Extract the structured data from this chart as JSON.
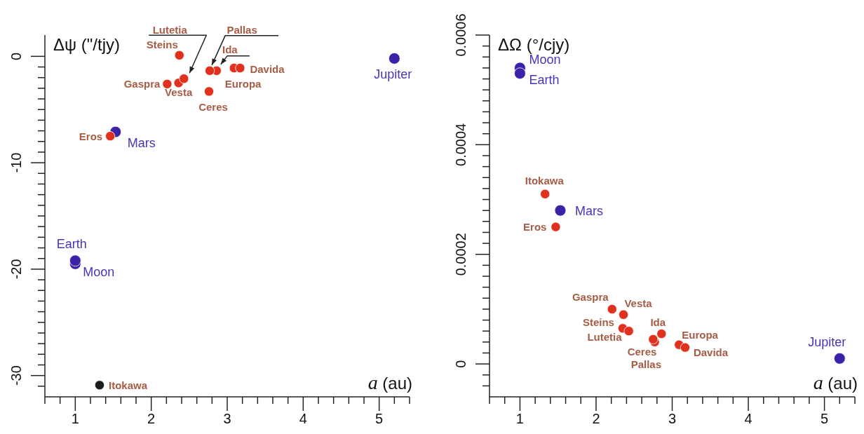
{
  "chart_data": [
    {
      "type": "scatter",
      "xlabel": "a (au)",
      "ylabel": "Δψ (\"/tjy)",
      "legend": false,
      "grid": false,
      "marker": "circle",
      "xlim": [
        0.6,
        5.4
      ],
      "ylim": [
        -32,
        2
      ],
      "xticks": [
        {
          "value": 0.6,
          "label": null
        },
        {
          "value": 0.8,
          "label": null
        },
        1,
        {
          "value": 1.2,
          "label": null
        },
        {
          "value": 1.4,
          "label": null
        },
        {
          "value": 1.6,
          "label": null
        },
        {
          "value": 1.8,
          "label": null
        },
        2,
        {
          "value": 2.2,
          "label": null
        },
        {
          "value": 2.4,
          "label": null
        },
        {
          "value": 2.6,
          "label": null
        },
        {
          "value": 2.8,
          "label": null
        },
        3,
        {
          "value": 3.2,
          "label": null
        },
        {
          "value": 3.4,
          "label": null
        },
        {
          "value": 3.6,
          "label": null
        },
        {
          "value": 3.8,
          "label": null
        },
        4,
        {
          "value": 4.2,
          "label": null
        },
        {
          "value": 4.4,
          "label": null
        },
        {
          "value": 4.6,
          "label": null
        },
        {
          "value": 4.8,
          "label": null
        },
        5,
        {
          "value": 5.2,
          "label": null
        },
        {
          "value": 5.4,
          "label": null
        }
      ],
      "yticks": [
        {
          "value": -31,
          "label": null
        },
        -30,
        {
          "value": -29,
          "label": null
        },
        {
          "value": -28,
          "label": null
        },
        {
          "value": -27,
          "label": null
        },
        {
          "value": -26,
          "label": null
        },
        {
          "value": -25,
          "label": null
        },
        {
          "value": -24,
          "label": null
        },
        {
          "value": -23,
          "label": null
        },
        {
          "value": -22,
          "label": null
        },
        {
          "value": -21,
          "label": null
        },
        -20,
        {
          "value": -19,
          "label": null
        },
        {
          "value": -18,
          "label": null
        },
        {
          "value": -17,
          "label": null
        },
        {
          "value": -16,
          "label": null
        },
        {
          "value": -15,
          "label": null
        },
        {
          "value": -14,
          "label": null
        },
        {
          "value": -13,
          "label": null
        },
        {
          "value": -12,
          "label": null
        },
        {
          "value": -11,
          "label": null
        },
        -10,
        {
          "value": -9,
          "label": null
        },
        {
          "value": -8,
          "label": null
        },
        {
          "value": -7,
          "label": null
        },
        {
          "value": -6,
          "label": null
        },
        {
          "value": -5,
          "label": null
        },
        {
          "value": -4,
          "label": null
        },
        {
          "value": -3,
          "label": null
        },
        {
          "value": -2,
          "label": null
        },
        {
          "value": -1,
          "label": null
        },
        0
      ],
      "series": [
        {
          "name": "Moon",
          "color": "#3b22a6",
          "x": [
            1.0
          ],
          "values": [
            -19.5
          ]
        },
        {
          "name": "Earth",
          "color": "#3b22a6",
          "x": [
            1.0
          ],
          "values": [
            -19.2
          ]
        },
        {
          "name": "Mars",
          "color": "#3b22a6",
          "x": [
            1.53
          ],
          "values": [
            -7.1
          ]
        },
        {
          "name": "Jupiter",
          "color": "#3b22a6",
          "x": [
            5.2
          ],
          "values": [
            -0.2
          ]
        },
        {
          "name": "Itokawa",
          "color": "#1c1c1c",
          "x": [
            1.32
          ],
          "values": [
            -30.9
          ]
        },
        {
          "name": "Eros",
          "color": "#e0301e",
          "x": [
            1.46
          ],
          "values": [
            -7.5
          ]
        },
        {
          "name": "Gaspra",
          "color": "#e0301e",
          "x": [
            2.21
          ],
          "values": [
            -2.6
          ]
        },
        {
          "name": "Steins",
          "color": "#e0301e",
          "x": [
            2.37
          ],
          "values": [
            0.1
          ]
        },
        {
          "name": "Vesta",
          "color": "#e0301e",
          "x": [
            2.36
          ],
          "values": [
            -2.5
          ]
        },
        {
          "name": "Lutetia",
          "color": "#e0301e",
          "x": [
            2.43
          ],
          "values": [
            -2.1
          ]
        },
        {
          "name": "Ida",
          "color": "#e0301e",
          "x": [
            2.86
          ],
          "values": [
            -1.35
          ]
        },
        {
          "name": "Ceres",
          "color": "#e0301e",
          "x": [
            2.76
          ],
          "values": [
            -3.3
          ]
        },
        {
          "name": "Pallas",
          "color": "#e0301e",
          "x": [
            2.77
          ],
          "values": [
            -1.35
          ]
        },
        {
          "name": "Europa",
          "color": "#e0301e",
          "x": [
            3.09
          ],
          "values": [
            -1.1
          ]
        },
        {
          "name": "Davida",
          "color": "#e0301e",
          "x": [
            3.17
          ],
          "values": [
            -1.1
          ]
        }
      ]
    },
    {
      "type": "scatter",
      "xlabel": "a (au)",
      "ylabel": "ΔΩ (°/cjy)",
      "legend": false,
      "grid": false,
      "marker": "circle",
      "xlim": [
        0.6,
        5.4
      ],
      "ylim": [
        -6e-05,
        0.0006
      ],
      "xticks": [
        {
          "value": 0.6,
          "label": null
        },
        {
          "value": 0.8,
          "label": null
        },
        1,
        {
          "value": 1.2,
          "label": null
        },
        {
          "value": 1.4,
          "label": null
        },
        {
          "value": 1.6,
          "label": null
        },
        {
          "value": 1.8,
          "label": null
        },
        2,
        {
          "value": 2.2,
          "label": null
        },
        {
          "value": 2.4,
          "label": null
        },
        {
          "value": 2.6,
          "label": null
        },
        {
          "value": 2.8,
          "label": null
        },
        3,
        {
          "value": 3.2,
          "label": null
        },
        {
          "value": 3.4,
          "label": null
        },
        {
          "value": 3.6,
          "label": null
        },
        {
          "value": 3.8,
          "label": null
        },
        4,
        {
          "value": 4.2,
          "label": null
        },
        {
          "value": 4.4,
          "label": null
        },
        {
          "value": 4.6,
          "label": null
        },
        {
          "value": 4.8,
          "label": null
        },
        5,
        {
          "value": 5.2,
          "label": null
        },
        {
          "value": 5.4,
          "label": null
        }
      ],
      "yticks": [
        {
          "value": -4e-05,
          "label": null
        },
        {
          "value": -2e-05,
          "label": null
        },
        0,
        {
          "value": 2e-05,
          "label": null
        },
        {
          "value": 4e-05,
          "label": null
        },
        {
          "value": 6e-05,
          "label": null
        },
        {
          "value": 8e-05,
          "label": null
        },
        {
          "value": 0.0001,
          "label": null
        },
        {
          "value": 0.00012,
          "label": null
        },
        {
          "value": 0.00014,
          "label": null
        },
        {
          "value": 0.00016,
          "label": null
        },
        {
          "value": 0.00018,
          "label": null
        },
        0.0002,
        {
          "value": 0.00022,
          "label": null
        },
        {
          "value": 0.00024,
          "label": null
        },
        {
          "value": 0.00026,
          "label": null
        },
        {
          "value": 0.00028,
          "label": null
        },
        {
          "value": 0.0003,
          "label": null
        },
        {
          "value": 0.00032,
          "label": null
        },
        {
          "value": 0.00034,
          "label": null
        },
        {
          "value": 0.00036,
          "label": null
        },
        {
          "value": 0.00038,
          "label": null
        },
        0.0004,
        {
          "value": 0.00042,
          "label": null
        },
        {
          "value": 0.00044,
          "label": null
        },
        {
          "value": 0.00046,
          "label": null
        },
        {
          "value": 0.00048,
          "label": null
        },
        {
          "value": 0.0005,
          "label": null
        },
        {
          "value": 0.00052,
          "label": null
        },
        {
          "value": 0.00054,
          "label": null
        },
        {
          "value": 0.00056,
          "label": null
        },
        {
          "value": 0.00058,
          "label": null
        },
        0.0006
      ],
      "series": [
        {
          "name": "Moon",
          "color": "#3b22a6",
          "x": [
            1.0
          ],
          "values": [
            0.00054
          ]
        },
        {
          "name": "Earth",
          "color": "#3b22a6",
          "x": [
            1.0
          ],
          "values": [
            0.00053
          ]
        },
        {
          "name": "Mars",
          "color": "#3b22a6",
          "x": [
            1.53
          ],
          "values": [
            0.00028
          ]
        },
        {
          "name": "Jupiter",
          "color": "#3b22a6",
          "x": [
            5.2
          ],
          "values": [
            1e-05
          ]
        },
        {
          "name": "Itokawa",
          "color": "#e0301e",
          "x": [
            1.33
          ],
          "values": [
            0.00031
          ]
        },
        {
          "name": "Eros",
          "color": "#e0301e",
          "x": [
            1.47
          ],
          "values": [
            0.00025
          ]
        },
        {
          "name": "Gaspra",
          "color": "#e0301e",
          "x": [
            2.21
          ],
          "values": [
            0.0001
          ]
        },
        {
          "name": "Steins",
          "color": "#e0301e",
          "x": [
            2.35
          ],
          "values": [
            6.5e-05
          ]
        },
        {
          "name": "Vesta",
          "color": "#e0301e",
          "x": [
            2.36
          ],
          "values": [
            9e-05
          ]
        },
        {
          "name": "Lutetia",
          "color": "#e0301e",
          "x": [
            2.43
          ],
          "values": [
            6e-05
          ]
        },
        {
          "name": "Ida",
          "color": "#e0301e",
          "x": [
            2.86
          ],
          "values": [
            5.5e-05
          ]
        },
        {
          "name": "Ceres",
          "color": "#e0301e",
          "x": [
            2.77
          ],
          "values": [
            4e-05
          ]
        },
        {
          "name": "Pallas",
          "color": "#e0301e",
          "x": [
            2.75
          ],
          "values": [
            4.5e-05
          ]
        },
        {
          "name": "Europa",
          "color": "#e0301e",
          "x": [
            3.09
          ],
          "values": [
            3.5e-05
          ]
        },
        {
          "name": "Davida",
          "color": "#e0301e",
          "x": [
            3.17
          ],
          "values": [
            3e-05
          ]
        }
      ]
    }
  ]
}
